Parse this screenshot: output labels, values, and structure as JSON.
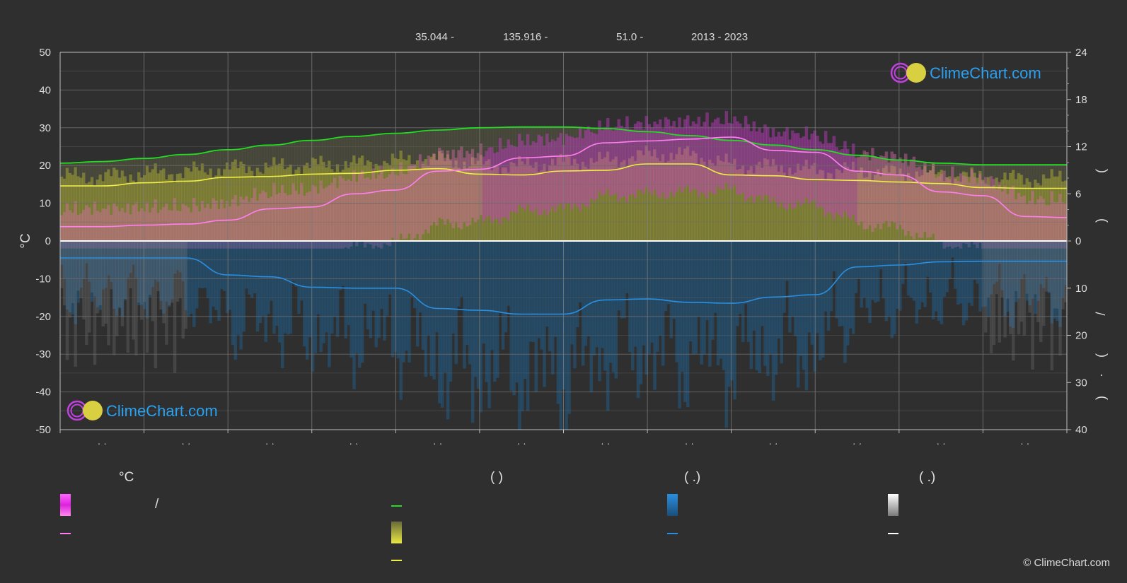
{
  "header": {
    "lat": "35.044 -",
    "lon": "135.916 -",
    "elev": "51.0 -",
    "years": "2013 - 2023"
  },
  "logo_text": "ClimeChart.com",
  "copyright": "© ClimeChart.com",
  "colors": {
    "background": "#2f2f2f",
    "grid": "#6a6a6a",
    "max_temp_line": "#ff7ff0",
    "daylight_line": "#22dd22",
    "sunshine_line": "#eeee44",
    "precip_line": "#2a8fe0",
    "zero_line": "#ffffff",
    "logo_blue": "#2aa0f0"
  },
  "legend": {
    "col1_head": "°C",
    "col1_slash": "/",
    "col2_head": "(          )",
    "col3_head": "(   .)",
    "col4_head": "(   .)"
  },
  "chart_data": {
    "type": "line",
    "ylabel_left": "°C",
    "ylim_left": [
      -50,
      50
    ],
    "yticks_left": [
      "50",
      "40",
      "30",
      "20",
      "10",
      "0",
      "-10",
      "-20",
      "-30",
      "-40",
      "-50"
    ],
    "right_upper_ticks": [
      "24",
      "18",
      "12",
      "6",
      "0"
    ],
    "right_upper_range": [
      0,
      24
    ],
    "right_lower_ticks": [
      "10",
      "20",
      "30",
      "40"
    ],
    "right_lower_range": [
      0,
      40
    ],
    "right_axis_glyphs": [
      "(",
      ")",
      "/",
      "(",
      "·",
      ")"
    ],
    "x_tick_labels": [
      "· ·",
      "· ·",
      "· ·",
      "· ·",
      "· ·",
      "· ·",
      "· ·",
      "· ·",
      "· ·",
      "· ·",
      "· ·",
      "· ·"
    ],
    "x": [
      0.0,
      0.5,
      1.0,
      1.5,
      2.0,
      2.5,
      3.0,
      3.5,
      4.0,
      4.5,
      5.0,
      5.5,
      6.0,
      6.5,
      7.0,
      7.5,
      8.0,
      8.5,
      9.0,
      9.5,
      10.0,
      10.5,
      11.0,
      11.5,
      12.0
    ],
    "series": [
      {
        "values": [
          3.8,
          3.8,
          4.2,
          4.5,
          5.5,
          8.5,
          9.0,
          12.5,
          13.5,
          18.5,
          19.0,
          22.0,
          22.5,
          26.0,
          26.5,
          27.0,
          27.5,
          24.0,
          23.5,
          18.5,
          17.5,
          13.0,
          12.0,
          6.5,
          6.2
        ],
        "axis": "left_celsius"
      },
      {
        "values": [
          9.9,
          10.1,
          10.5,
          11.0,
          11.6,
          12.2,
          12.8,
          13.3,
          13.7,
          14.1,
          14.4,
          14.5,
          14.5,
          14.3,
          13.9,
          13.4,
          12.8,
          12.2,
          11.6,
          10.9,
          10.3,
          9.9,
          9.7,
          9.7,
          9.7
        ],
        "axis": "right_hours"
      },
      {
        "values": [
          7.0,
          7.0,
          7.4,
          7.6,
          8.1,
          8.2,
          8.5,
          8.6,
          9.0,
          9.2,
          8.5,
          8.4,
          8.9,
          9.0,
          9.8,
          9.8,
          8.4,
          8.3,
          7.8,
          7.7,
          7.5,
          7.3,
          6.8,
          6.7,
          6.7
        ],
        "axis": "right_hours"
      },
      {
        "values": [
          3.6,
          3.6,
          3.6,
          3.6,
          7.2,
          7.6,
          9.8,
          10.0,
          10.0,
          14.3,
          14.7,
          15.5,
          15.5,
          12.5,
          12.3,
          13.0,
          13.2,
          11.9,
          11.4,
          5.5,
          5.1,
          4.4,
          4.3,
          4.3,
          4.3
        ],
        "axis": "right_precip"
      }
    ]
  }
}
